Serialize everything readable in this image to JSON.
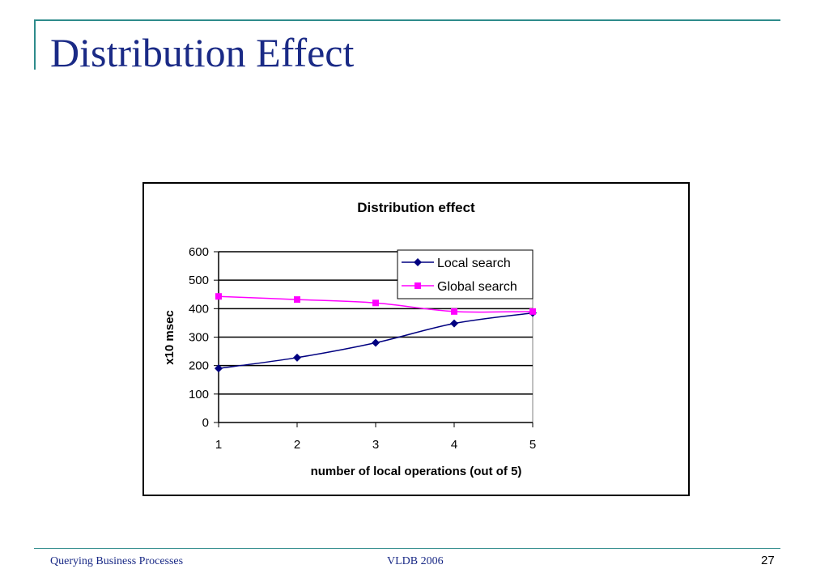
{
  "slide": {
    "title": "Distribution Effect",
    "footer_left": "Querying Business Processes",
    "footer_center": "VLDB 2006",
    "page_number": "27"
  },
  "colors": {
    "accent": "#2e8b8b",
    "title": "#1a2a86",
    "local_series": "#000080",
    "global_series": "#ff00ff"
  },
  "chart_data": {
    "type": "line",
    "title": "Distribution effect",
    "xlabel": "number of local operations (out of 5)",
    "ylabel": "x10 msec",
    "x": [
      1,
      2,
      3,
      4,
      5
    ],
    "xticks": [
      "1",
      "2",
      "3",
      "4",
      "5"
    ],
    "yticks": [
      "0",
      "100",
      "200",
      "300",
      "400",
      "500",
      "600"
    ],
    "ylim": [
      0,
      600
    ],
    "grid": true,
    "legend_position": "top-right",
    "series": [
      {
        "name": "Local search",
        "marker": "diamond",
        "color": "#000080",
        "values": [
          190,
          228,
          280,
          348,
          385
        ]
      },
      {
        "name": "Global search",
        "marker": "square",
        "color": "#ff00ff",
        "values": [
          443,
          432,
          420,
          390,
          390
        ]
      }
    ]
  }
}
